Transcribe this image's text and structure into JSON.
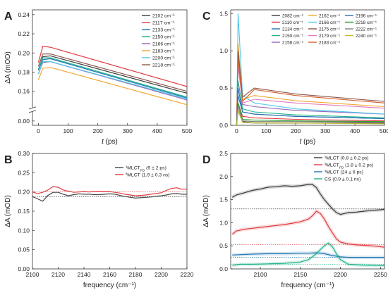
{
  "panels": [
    {
      "id": "A",
      "letter": "A",
      "type": "line",
      "xlabel": "t (ps)",
      "ylabel": "ΔA (mOD)",
      "x_ticks": [
        0,
        100,
        200,
        300,
        400,
        500
      ],
      "x_tick_labels": [
        "0",
        "100",
        "200",
        "300",
        "400",
        "500"
      ],
      "xlim": [
        -20,
        500
      ],
      "broken_y": true,
      "y_ticks": [
        0.16,
        0.18,
        0.2,
        0.22,
        0.24
      ],
      "y_tick_labels": [
        "0.16",
        "0.18",
        "0.20",
        "0.22",
        "0.24"
      ],
      "y_ticks_lower": [
        0.0
      ],
      "y_tick_labels_lower": [
        "0.00"
      ],
      "legend_cols": 1,
      "legend_pos": "top-right",
      "series": [
        {
          "name": "2102 cm⁻¹",
          "color": "#3b3b3b",
          "x": [
            0,
            15,
            40,
            500
          ],
          "y": [
            0.182,
            0.196,
            0.197,
            0.158
          ]
        },
        {
          "name": "2117 cm⁻¹",
          "color": "#e0393e",
          "x": [
            0,
            15,
            40,
            500
          ],
          "y": [
            0.19,
            0.207,
            0.206,
            0.165
          ]
        },
        {
          "name": "2133 cm⁻¹",
          "color": "#1f77b4",
          "x": [
            0,
            15,
            40,
            500
          ],
          "y": [
            0.182,
            0.193,
            0.194,
            0.153
          ]
        },
        {
          "name": "2150 cm⁻¹",
          "color": "#20b28a",
          "x": [
            0,
            15,
            40,
            500
          ],
          "y": [
            0.183,
            0.195,
            0.195,
            0.154
          ]
        },
        {
          "name": "2166 cm⁻¹",
          "color": "#9467bd",
          "x": [
            0,
            15,
            40,
            500
          ],
          "y": [
            0.178,
            0.19,
            0.191,
            0.151
          ]
        },
        {
          "name": "2183 cm⁻¹",
          "color": "#f0a830",
          "x": [
            0,
            15,
            40,
            500
          ],
          "y": [
            0.172,
            0.184,
            0.185,
            0.146
          ]
        },
        {
          "name": "2200 cm⁻¹",
          "color": "#4fc6e8",
          "x": [
            0,
            15,
            40,
            500
          ],
          "y": [
            0.178,
            0.191,
            0.191,
            0.152
          ]
        },
        {
          "name": "2218 cm⁻¹",
          "color": "#8c564b",
          "x": [
            0,
            15,
            40,
            500
          ],
          "y": [
            0.186,
            0.199,
            0.199,
            0.16
          ]
        }
      ]
    },
    {
      "id": "C",
      "letter": "C",
      "type": "line",
      "xlabel": "t (ps)",
      "ylabel": "",
      "x_ticks": [
        0,
        100,
        200,
        300,
        400,
        500
      ],
      "x_tick_labels": [
        "0",
        "100",
        "200",
        "300",
        "400",
        "500"
      ],
      "xlim": [
        -20,
        500
      ],
      "ylim": [
        0,
        1.55
      ],
      "y_ticks": [
        0.0,
        0.5,
        1.0,
        1.5
      ],
      "y_tick_labels": [
        "0.0",
        "0.5",
        "1.0",
        "1.5"
      ],
      "legend_cols": 3,
      "legend_pos": "top-right",
      "series": [
        {
          "name": "2082 cm⁻¹",
          "color": "#3b3b3b",
          "x": [
            0,
            5,
            20,
            60,
            200,
            500
          ],
          "y": [
            0.0,
            0.2,
            0.05,
            0.03,
            0.03,
            0.03
          ]
        },
        {
          "name": "2110 cm⁻¹",
          "color": "#e0393e",
          "x": [
            0,
            5,
            20,
            60,
            200,
            500
          ],
          "y": [
            0.0,
            0.3,
            0.12,
            0.1,
            0.08,
            0.06
          ]
        },
        {
          "name": "2134 cm⁻¹",
          "color": "#1f77b4",
          "x": [
            0,
            5,
            20,
            60,
            200,
            500
          ],
          "y": [
            0.0,
            0.4,
            0.18,
            0.15,
            0.12,
            0.09
          ]
        },
        {
          "name": "2150 cm⁻¹",
          "color": "#20b28a",
          "x": [
            0,
            5,
            20,
            60,
            200,
            500
          ],
          "y": [
            0.0,
            0.6,
            0.22,
            0.18,
            0.14,
            0.1
          ]
        },
        {
          "name": "2158 cm⁻¹",
          "color": "#9467bd",
          "x": [
            0,
            5,
            20,
            60,
            200,
            500
          ],
          "y": [
            0.0,
            0.9,
            0.28,
            0.25,
            0.2,
            0.15
          ]
        },
        {
          "name": "2162 cm⁻¹",
          "color": "#f0a830",
          "x": [
            0,
            5,
            20,
            60,
            200,
            500
          ],
          "y": [
            0.0,
            1.1,
            0.35,
            0.4,
            0.33,
            0.25
          ]
        },
        {
          "name": "2166 cm⁻¹",
          "color": "#4fc6e8",
          "x": [
            0,
            5,
            20,
            60,
            200,
            500
          ],
          "y": [
            0.0,
            1.5,
            0.4,
            0.3,
            0.22,
            0.15
          ]
        },
        {
          "name": "2175 cm⁻¹",
          "color": "#8c564b",
          "x": [
            0,
            5,
            20,
            60,
            200,
            500
          ],
          "y": [
            0.0,
            1.0,
            0.38,
            0.5,
            0.42,
            0.32
          ]
        },
        {
          "name": "2179 cm⁻¹",
          "color": "#e377c2",
          "x": [
            0,
            5,
            20,
            60,
            200,
            500
          ],
          "y": [
            0.0,
            0.8,
            0.3,
            0.35,
            0.3,
            0.23
          ]
        },
        {
          "name": "2183 cm⁻¹",
          "color": "#d4622a",
          "x": [
            0,
            5,
            20,
            60,
            200,
            500
          ],
          "y": [
            0.0,
            0.9,
            0.32,
            0.48,
            0.4,
            0.3
          ]
        },
        {
          "name": "2196 cm⁻¹",
          "color": "#2a6fb0",
          "x": [
            0,
            5,
            20,
            60,
            200,
            500
          ],
          "y": [
            0.0,
            0.5,
            0.18,
            0.15,
            0.12,
            0.09
          ]
        },
        {
          "name": "2218 cm⁻¹",
          "color": "#2ca02c",
          "x": [
            0,
            5,
            20,
            60,
            200,
            500
          ],
          "y": [
            0.0,
            0.3,
            0.08,
            0.07,
            0.06,
            0.05
          ]
        },
        {
          "name": "2222 cm⁻¹",
          "color": "#7f7f7f",
          "x": [
            0,
            5,
            20,
            60,
            200,
            500
          ],
          "y": [
            0.0,
            0.25,
            0.06,
            0.05,
            0.05,
            0.04
          ]
        },
        {
          "name": "2240 cm⁻¹",
          "color": "#bcbd22",
          "x": [
            0,
            5,
            20,
            60,
            200,
            500
          ],
          "y": [
            0.0,
            0.2,
            0.04,
            0.03,
            0.03,
            0.02
          ]
        }
      ]
    },
    {
      "id": "B",
      "letter": "B",
      "type": "line",
      "xlabel": "frequency (cm⁻¹)",
      "ylabel": "ΔA (mOD)",
      "x_ticks": [
        2100,
        2120,
        2140,
        2160,
        2180,
        2200,
        2220
      ],
      "x_tick_labels": [
        "2100",
        "2120",
        "2140",
        "2160",
        "2180",
        "2200",
        "2220"
      ],
      "xlim": [
        2100,
        2220
      ],
      "ylim": [
        0,
        0.3
      ],
      "y_ticks": [
        0.0,
        0.05,
        0.1,
        0.15,
        0.2,
        0.25,
        0.3
      ],
      "y_tick_labels": [
        "0.00",
        "0.05",
        "0.10",
        "0.15",
        "0.20",
        "0.25",
        "0.30"
      ],
      "legend_cols": 1,
      "legend_pos": "top-right",
      "hlines": [
        {
          "y": 0.2,
          "color": "#e0393e"
        },
        {
          "y": 0.188,
          "color": "#3b3b3b"
        }
      ],
      "series": [
        {
          "name": "¹MLCT_FD (9 ± 2 ps)",
          "color": "#444444",
          "x": [
            2100,
            2104,
            2108,
            2112,
            2116,
            2120,
            2124,
            2128,
            2132,
            2136,
            2140,
            2144,
            2148,
            2152,
            2156,
            2160,
            2164,
            2168,
            2172,
            2176,
            2180,
            2184,
            2188,
            2192,
            2196,
            2200,
            2204,
            2208,
            2212,
            2216,
            2220
          ],
          "y": [
            0.188,
            0.182,
            0.176,
            0.191,
            0.199,
            0.199,
            0.194,
            0.19,
            0.193,
            0.195,
            0.194,
            0.194,
            0.193,
            0.193,
            0.194,
            0.195,
            0.194,
            0.191,
            0.188,
            0.186,
            0.184,
            0.185,
            0.186,
            0.187,
            0.189,
            0.19,
            0.192,
            0.195,
            0.196,
            0.194,
            0.194
          ]
        },
        {
          "name": "³MLCT (1.9 ± 0.3 ns)",
          "color": "#e0393e",
          "x": [
            2100,
            2104,
            2108,
            2112,
            2116,
            2120,
            2124,
            2128,
            2132,
            2136,
            2140,
            2144,
            2148,
            2152,
            2156,
            2160,
            2164,
            2168,
            2172,
            2176,
            2180,
            2184,
            2188,
            2192,
            2196,
            2200,
            2204,
            2208,
            2212,
            2216,
            2220
          ],
          "y": [
            0.2,
            0.196,
            0.199,
            0.205,
            0.214,
            0.212,
            0.205,
            0.202,
            0.199,
            0.2,
            0.201,
            0.2,
            0.201,
            0.201,
            0.201,
            0.201,
            0.199,
            0.197,
            0.194,
            0.192,
            0.19,
            0.191,
            0.192,
            0.194,
            0.196,
            0.198,
            0.204,
            0.209,
            0.211,
            0.207,
            0.207
          ]
        }
      ]
    },
    {
      "id": "D",
      "letter": "D",
      "type": "line",
      "xlabel": "frequency (cm⁻¹)",
      "ylabel": "ΔA (mOD)",
      "x_ticks": [
        2100,
        2150,
        2200,
        2250
      ],
      "x_tick_labels": [
        "2100",
        "2150",
        "2200",
        "2250"
      ],
      "xlim": [
        2063,
        2255
      ],
      "ylim": [
        0,
        2.5
      ],
      "y_ticks": [
        0.0,
        0.5,
        1.0,
        1.5,
        2.0,
        2.5
      ],
      "y_tick_labels": [
        "0.0",
        "0.5",
        "1.0",
        "1.5",
        "2.0",
        "2.5"
      ],
      "legend_cols": 1,
      "legend_pos": "top-right",
      "hlines": [
        {
          "y": 1.3,
          "color": "#3b3b3b"
        },
        {
          "y": 0.53,
          "color": "#e0393e"
        },
        {
          "y": 0.25,
          "color": "#1f77b4"
        },
        {
          "y": 0.1,
          "color": "#20b28a"
        }
      ],
      "series": [
        {
          "name": "¹MLCT (0.8 ± 0.2 ps)",
          "color": "#3b3b3b",
          "x": [
            2065,
            2070,
            2080,
            2090,
            2100,
            2110,
            2120,
            2130,
            2140,
            2150,
            2160,
            2165,
            2170,
            2175,
            2180,
            2185,
            2190,
            2195,
            2200,
            2205,
            2210,
            2220,
            2230,
            2240,
            2250,
            2255
          ],
          "y": [
            1.55,
            1.6,
            1.65,
            1.7,
            1.73,
            1.77,
            1.78,
            1.8,
            1.79,
            1.8,
            1.83,
            1.83,
            1.76,
            1.62,
            1.5,
            1.4,
            1.3,
            1.22,
            1.18,
            1.2,
            1.22,
            1.23,
            1.25,
            1.27,
            1.28,
            1.29
          ]
        },
        {
          "name": "³MLCT_FD (1.8 ± 0.2 ps)",
          "color": "#e0393e",
          "x": [
            2065,
            2070,
            2080,
            2090,
            2100,
            2110,
            2120,
            2130,
            2140,
            2150,
            2160,
            2165,
            2170,
            2175,
            2180,
            2185,
            2190,
            2195,
            2200,
            2210,
            2220,
            2230,
            2240,
            2250,
            2255
          ],
          "y": [
            0.75,
            0.82,
            0.86,
            0.88,
            0.9,
            0.92,
            0.94,
            0.96,
            0.99,
            1.02,
            1.08,
            1.15,
            1.25,
            1.2,
            1.08,
            0.92,
            0.78,
            0.65,
            0.58,
            0.54,
            0.52,
            0.51,
            0.5,
            0.48,
            0.47
          ]
        },
        {
          "name": "³MLCT (24 ± 6 ps)",
          "color": "#1f77b4",
          "x": [
            2065,
            2075,
            2090,
            2110,
            2130,
            2150,
            2160,
            2170,
            2180,
            2190,
            2200,
            2210,
            2230,
            2255
          ],
          "y": [
            0.3,
            0.31,
            0.32,
            0.33,
            0.33,
            0.34,
            0.34,
            0.35,
            0.33,
            0.29,
            0.26,
            0.25,
            0.25,
            0.25
          ]
        },
        {
          "name": "CS (0.9 ± 0.1 ns)",
          "color": "#20b28a",
          "x": [
            2065,
            2075,
            2090,
            2110,
            2130,
            2150,
            2160,
            2170,
            2175,
            2180,
            2185,
            2190,
            2195,
            2200,
            2210,
            2230,
            2255
          ],
          "y": [
            0.08,
            0.1,
            0.1,
            0.11,
            0.12,
            0.15,
            0.2,
            0.33,
            0.42,
            0.5,
            0.56,
            0.48,
            0.33,
            0.2,
            0.1,
            0.08,
            0.07
          ]
        }
      ]
    }
  ]
}
